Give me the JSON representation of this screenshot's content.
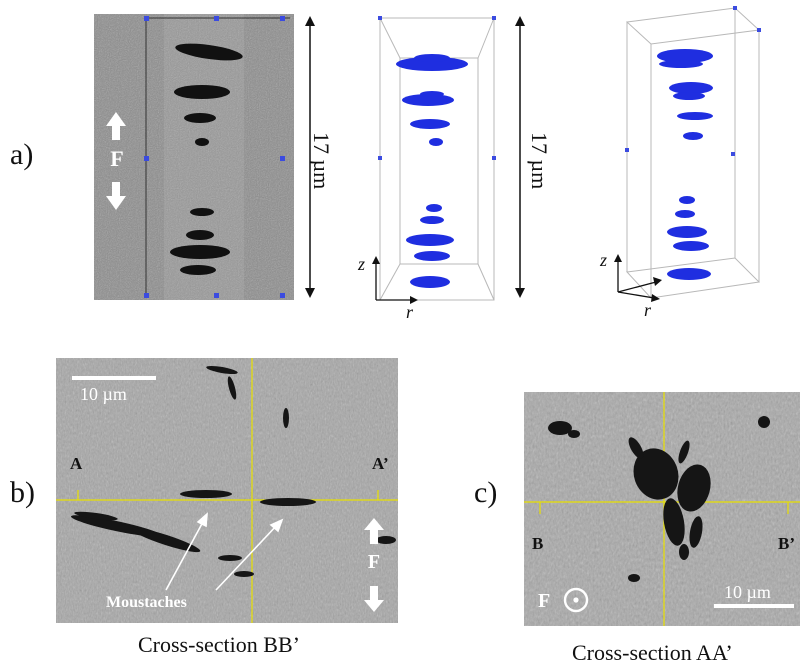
{
  "panels": {
    "a": {
      "label": "a)",
      "dimension": "17 µm",
      "force_label": "F",
      "axis_z": "z",
      "axis_r": "r"
    },
    "b": {
      "label": "b)",
      "scale_bar": "10 µm",
      "point_left": "A",
      "point_right": "A’",
      "force_label": "F",
      "annotation": "Moustaches",
      "caption": "Cross-section BB’"
    },
    "c": {
      "label": "c)",
      "scale_bar": "10 µm",
      "point_left": "B",
      "point_right": "B’",
      "force_label": "F",
      "caption": "Cross-section AA’"
    }
  },
  "colors": {
    "voids_blue": "#1f2ee0",
    "guide_yellow": "#e8e000",
    "frame_grey": "#b8b8b8"
  }
}
